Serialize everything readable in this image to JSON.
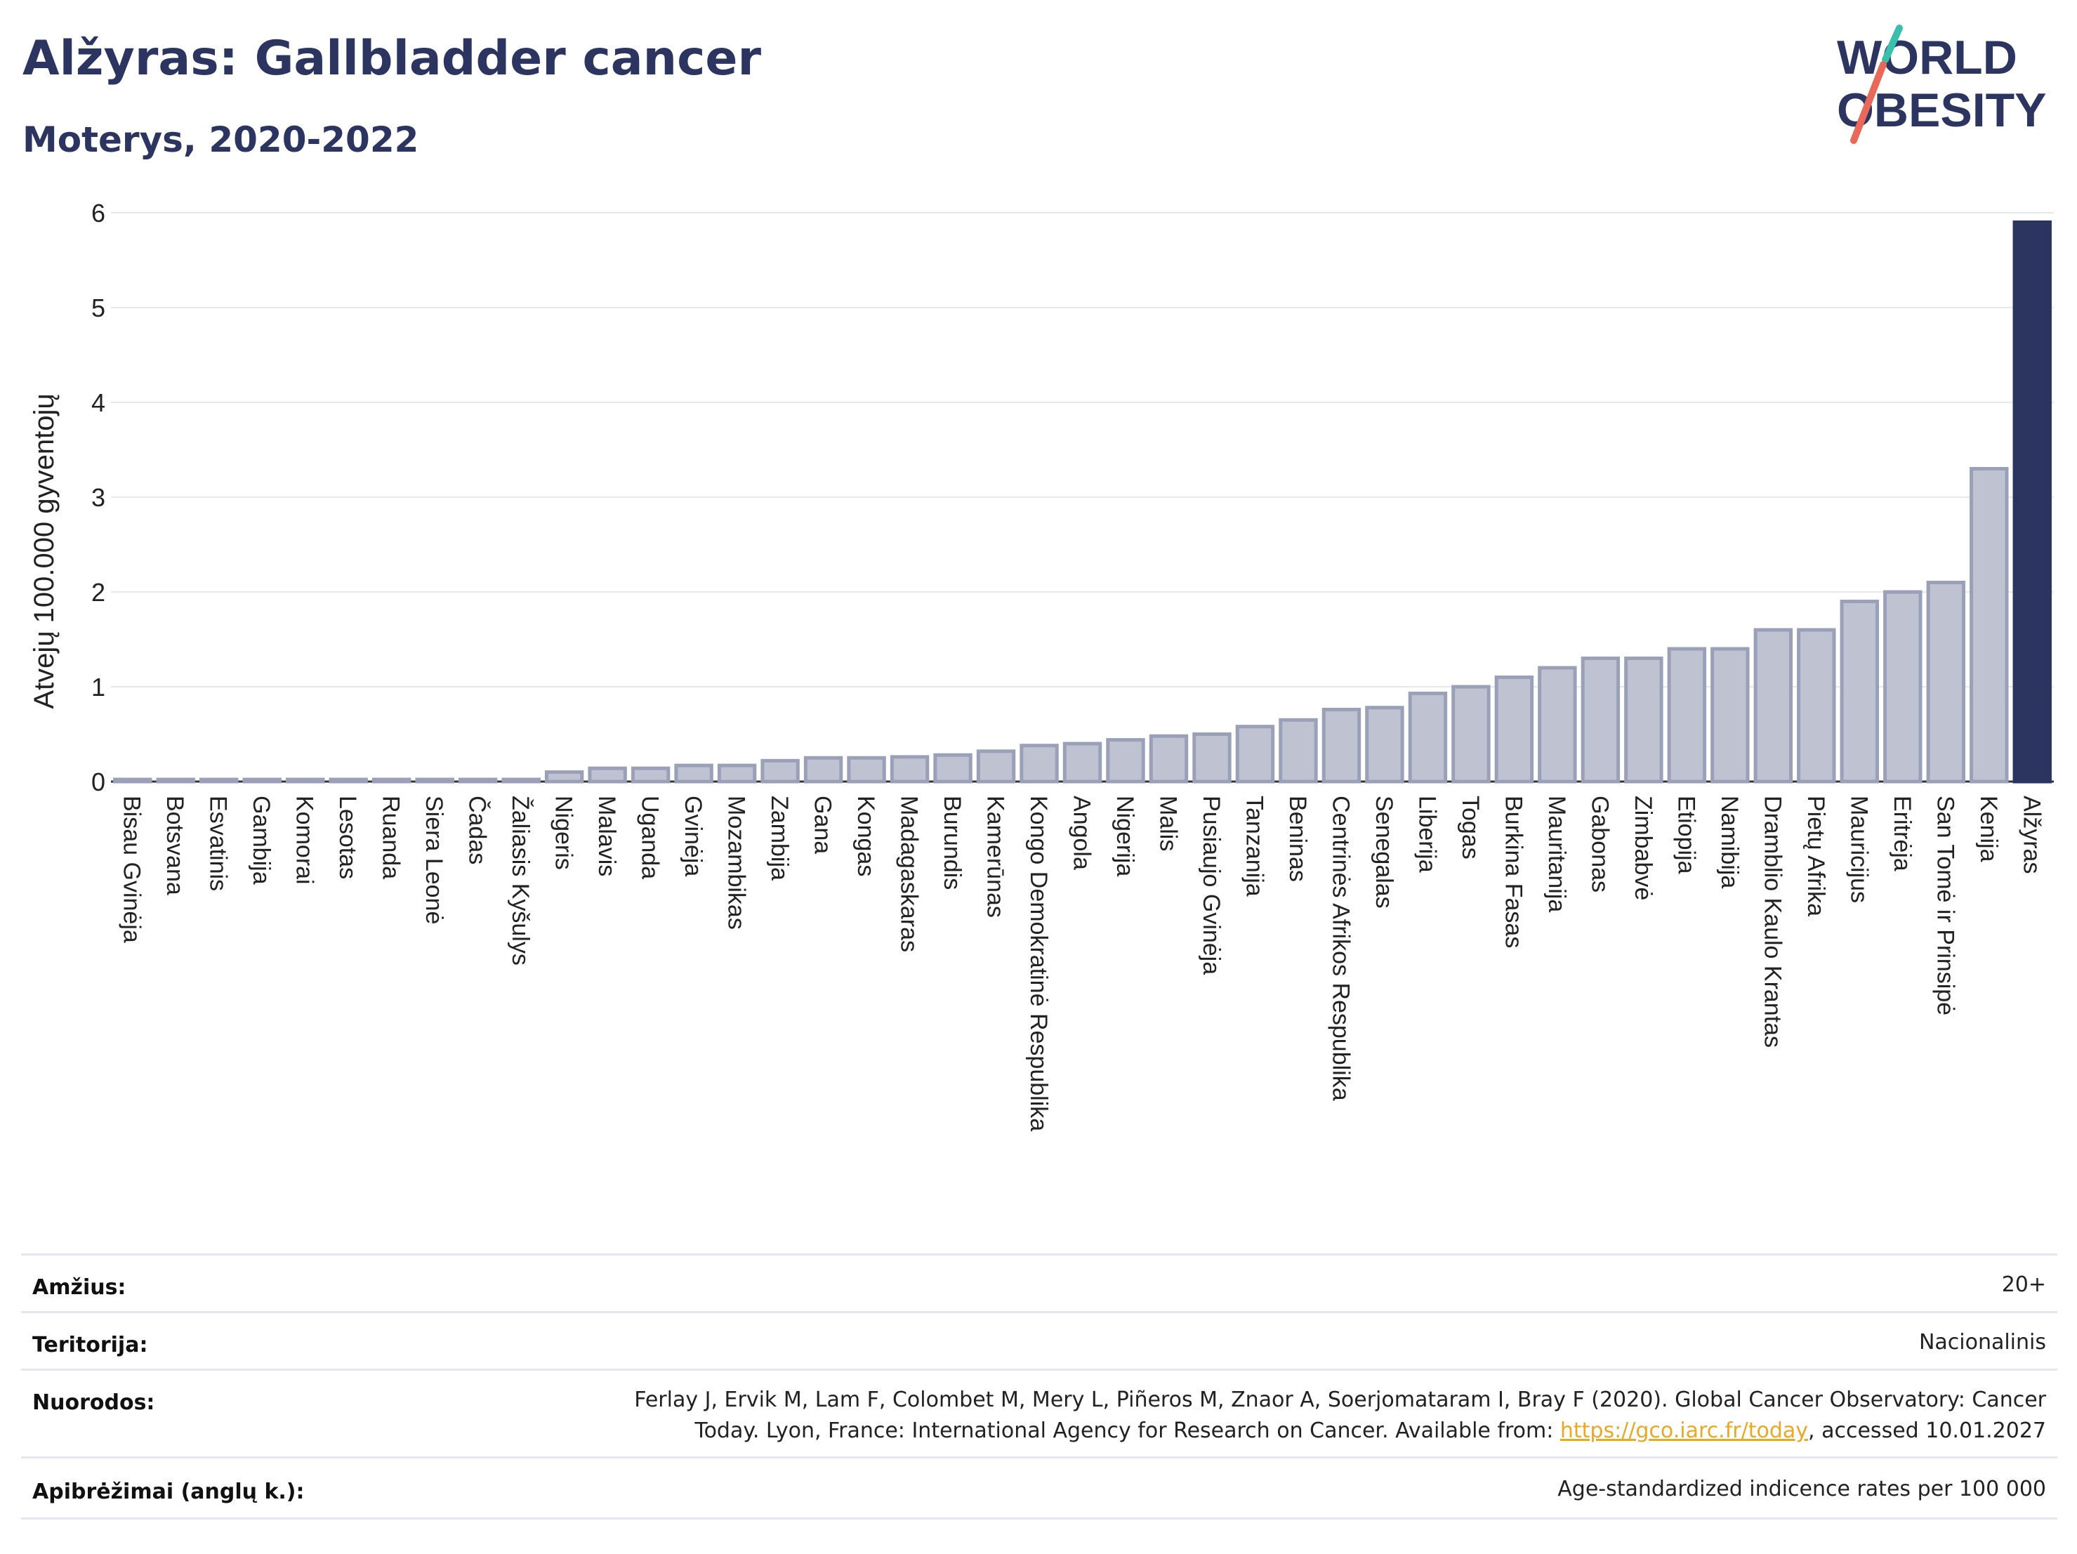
{
  "header": {
    "title": "Alžyras: Gallbladder cancer",
    "subtitle": "Moterys, 2020-2022"
  },
  "logo": {
    "line1": "WORLD",
    "line2": "OBESITY",
    "text_color": "#2b3560",
    "accent_teal": "#3bbfad",
    "accent_red": "#e8685a"
  },
  "chart_data": {
    "type": "bar",
    "ylabel": "Atvejų 100.000 gyventojų",
    "xlabel": "",
    "ylim": [
      0,
      6
    ],
    "yticks": [
      0,
      1,
      2,
      3,
      4,
      5,
      6
    ],
    "grid": true,
    "bar_color": "#bfc3d1",
    "bar_border": "#9aa0b8",
    "highlight_color": "#2b3560",
    "highlight_category": "Alžyras",
    "categories": [
      "Bisau Gvinėja",
      "Botsvana",
      "Esvatinis",
      "Gambija",
      "Komorai",
      "Lesotas",
      "Ruanda",
      "Siera Leonė",
      "Čadas",
      "Žaliasis Kyšulys",
      "Nigeris",
      "Malavis",
      "Uganda",
      "Gvinėja",
      "Mozambikas",
      "Zambija",
      "Gana",
      "Kongas",
      "Madagaskaras",
      "Burundis",
      "Kamerūnas",
      "Kongo Demokratinė Respublika",
      "Angola",
      "Nigerija",
      "Malis",
      "Pusiaujo Gvinėja",
      "Tanzanija",
      "Beninas",
      "Centrinės Afrikos Respublika",
      "Senegalas",
      "Liberija",
      "Togas",
      "Burkina Fasas",
      "Mauritanija",
      "Gabonas",
      "Zimbabvė",
      "Etiopija",
      "Namibija",
      "Dramblio Kaulo Krantas",
      "Pietų Afrika",
      "Mauricijus",
      "Eritrėja",
      "San Tomė ir Prinsipė",
      "Kenija",
      "Alžyras"
    ],
    "values": [
      0.01,
      0.01,
      0.01,
      0.01,
      0.01,
      0.01,
      0.01,
      0.01,
      0.01,
      0.01,
      0.1,
      0.14,
      0.14,
      0.17,
      0.17,
      0.22,
      0.25,
      0.25,
      0.26,
      0.28,
      0.32,
      0.38,
      0.4,
      0.44,
      0.48,
      0.5,
      0.58,
      0.65,
      0.76,
      0.78,
      0.93,
      1.0,
      1.1,
      1.2,
      1.3,
      1.3,
      1.4,
      1.4,
      1.6,
      1.6,
      1.9,
      2.0,
      2.1,
      3.3,
      5.9
    ]
  },
  "meta": {
    "age": {
      "label": "Amžius:",
      "value": "20+"
    },
    "territory": {
      "label": "Teritorija:",
      "value": "Nacionalinis"
    },
    "references": {
      "label": "Nuorodos:",
      "line1": "Ferlay J, Ervik M, Lam F, Colombet M, Mery L, Piñeros M, Znaor A, Soerjomataram I, Bray F (2020). Global Cancer Observatory: Cancer",
      "line2_pre": "Today. Lyon, France: International Agency for Research on Cancer. Available from: ",
      "link": "https://gco.iarc.fr/today",
      "line2_post": ", accessed 10.01.2027"
    },
    "definitions": {
      "label": "Apibrėžimai (anglų k.):",
      "value": "Age-standardized indicence rates per 100 000"
    }
  }
}
